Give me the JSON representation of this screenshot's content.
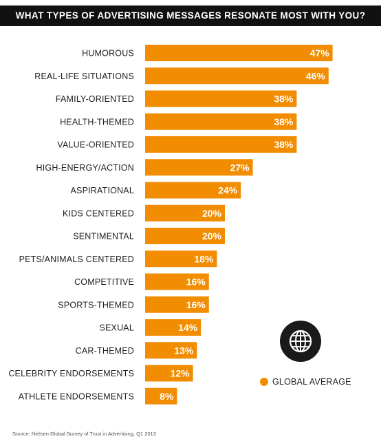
{
  "colors": {
    "bar": "#f28c00",
    "title_bg": "#111111",
    "globe": "#1a1a1a"
  },
  "icon": "globe-icon",
  "source": "Source: Nielsen Global Survey of Trust in Advertising, Q1 2013",
  "chart_data": {
    "type": "bar",
    "orientation": "horizontal",
    "title": "WHAT TYPES OF ADVERTISING MESSAGES RESONATE MOST WITH YOU?",
    "categories": [
      "HUMOROUS",
      "REAL-LIFE SITUATIONS",
      "FAMILY-ORIENTED",
      "HEALTH-THEMED",
      "VALUE-ORIENTED",
      "HIGH-ENERGY/ACTION",
      "ASPIRATIONAL",
      "KIDS CENTERED",
      "SENTIMENTAL",
      "PETS/ANIMALS CENTERED",
      "COMPETITIVE",
      "SPORTS-THEMED",
      "SEXUAL",
      "CAR-THEMED",
      "CELEBRITY ENDORSEMENTS",
      "ATHLETE ENDORSEMENTS"
    ],
    "series": [
      {
        "name": "GLOBAL AVERAGE",
        "values": [
          47,
          46,
          38,
          38,
          38,
          27,
          24,
          20,
          20,
          18,
          16,
          16,
          14,
          13,
          12,
          8
        ]
      }
    ],
    "value_labels": [
      "47%",
      "46%",
      "38%",
      "38%",
      "38%",
      "27%",
      "24%",
      "20%",
      "20%",
      "18%",
      "16%",
      "16%",
      "14%",
      "13%",
      "12%",
      "8%"
    ],
    "xlim": [
      0,
      50
    ],
    "grid": false,
    "legend_position": "bottom-right"
  }
}
